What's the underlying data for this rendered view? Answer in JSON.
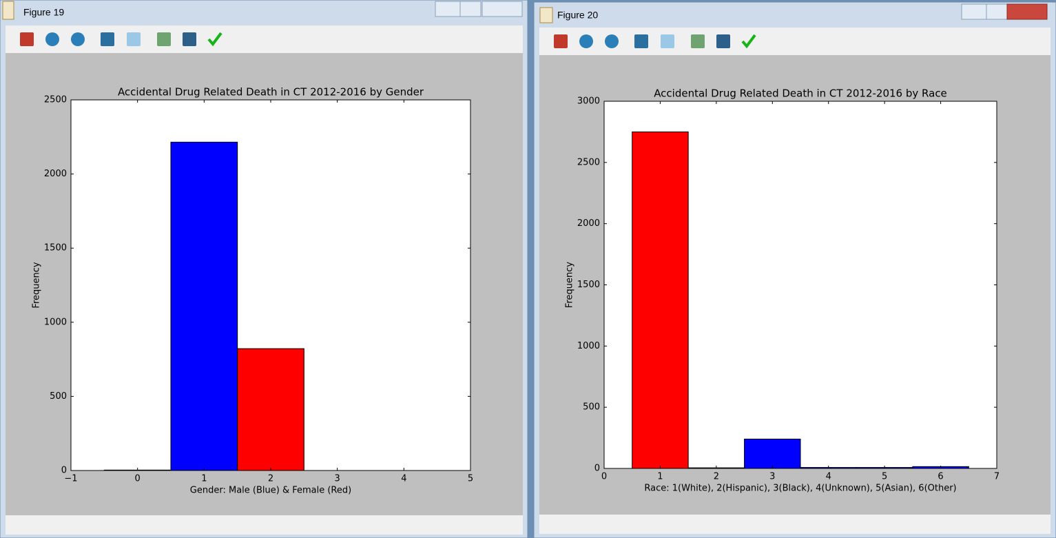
{
  "windows": [
    {
      "title": "Figure 19"
    },
    {
      "title": "Figure 20"
    }
  ],
  "chart_data": [
    {
      "type": "histogram",
      "title": "Accidental Drug Related Death in CT 2012-2016 by Gender",
      "xlabel": "Gender: Male (Blue) & Female (Red)",
      "ylabel": "Frequency",
      "bins": [
        -0.5,
        0.5,
        1.5,
        2.5
      ],
      "counts": [
        3,
        2215,
        822
      ],
      "colors": [
        "#0000ff",
        "#0000ff",
        "#ff0000"
      ],
      "xlim": [
        -1,
        5
      ],
      "xticks": [
        {
          "value": -1,
          "label": "−1"
        },
        0,
        1,
        2,
        3,
        4,
        5
      ],
      "ylim": [
        0,
        2500
      ],
      "yticks": [
        0,
        500,
        1000,
        1500,
        2000,
        2500
      ]
    },
    {
      "type": "histogram",
      "title": "Accidental Drug Related Death in CT 2012-2016 by Race",
      "xlabel": "Race: 1(White), 2(Hispanic), 3(Black), 4(Unknown), 5(Asian), 6(Other)",
      "ylabel": "Frequency",
      "bins": [
        0.5,
        1.5,
        2.5,
        3.5,
        4.5,
        5.5,
        6.5
      ],
      "counts": [
        2750,
        5,
        240,
        8,
        8,
        15
      ],
      "colors": [
        "#ff0000",
        "#0000ff",
        "#0000ff",
        "#0000ff",
        "#0000ff",
        "#0000ff"
      ],
      "xlim": [
        0,
        7
      ],
      "xticks": [
        0,
        1,
        2,
        3,
        4,
        5,
        6,
        7
      ],
      "ylim": [
        0,
        3000
      ],
      "yticks": [
        0,
        500,
        1000,
        1500,
        2000,
        2500,
        3000
      ]
    }
  ]
}
